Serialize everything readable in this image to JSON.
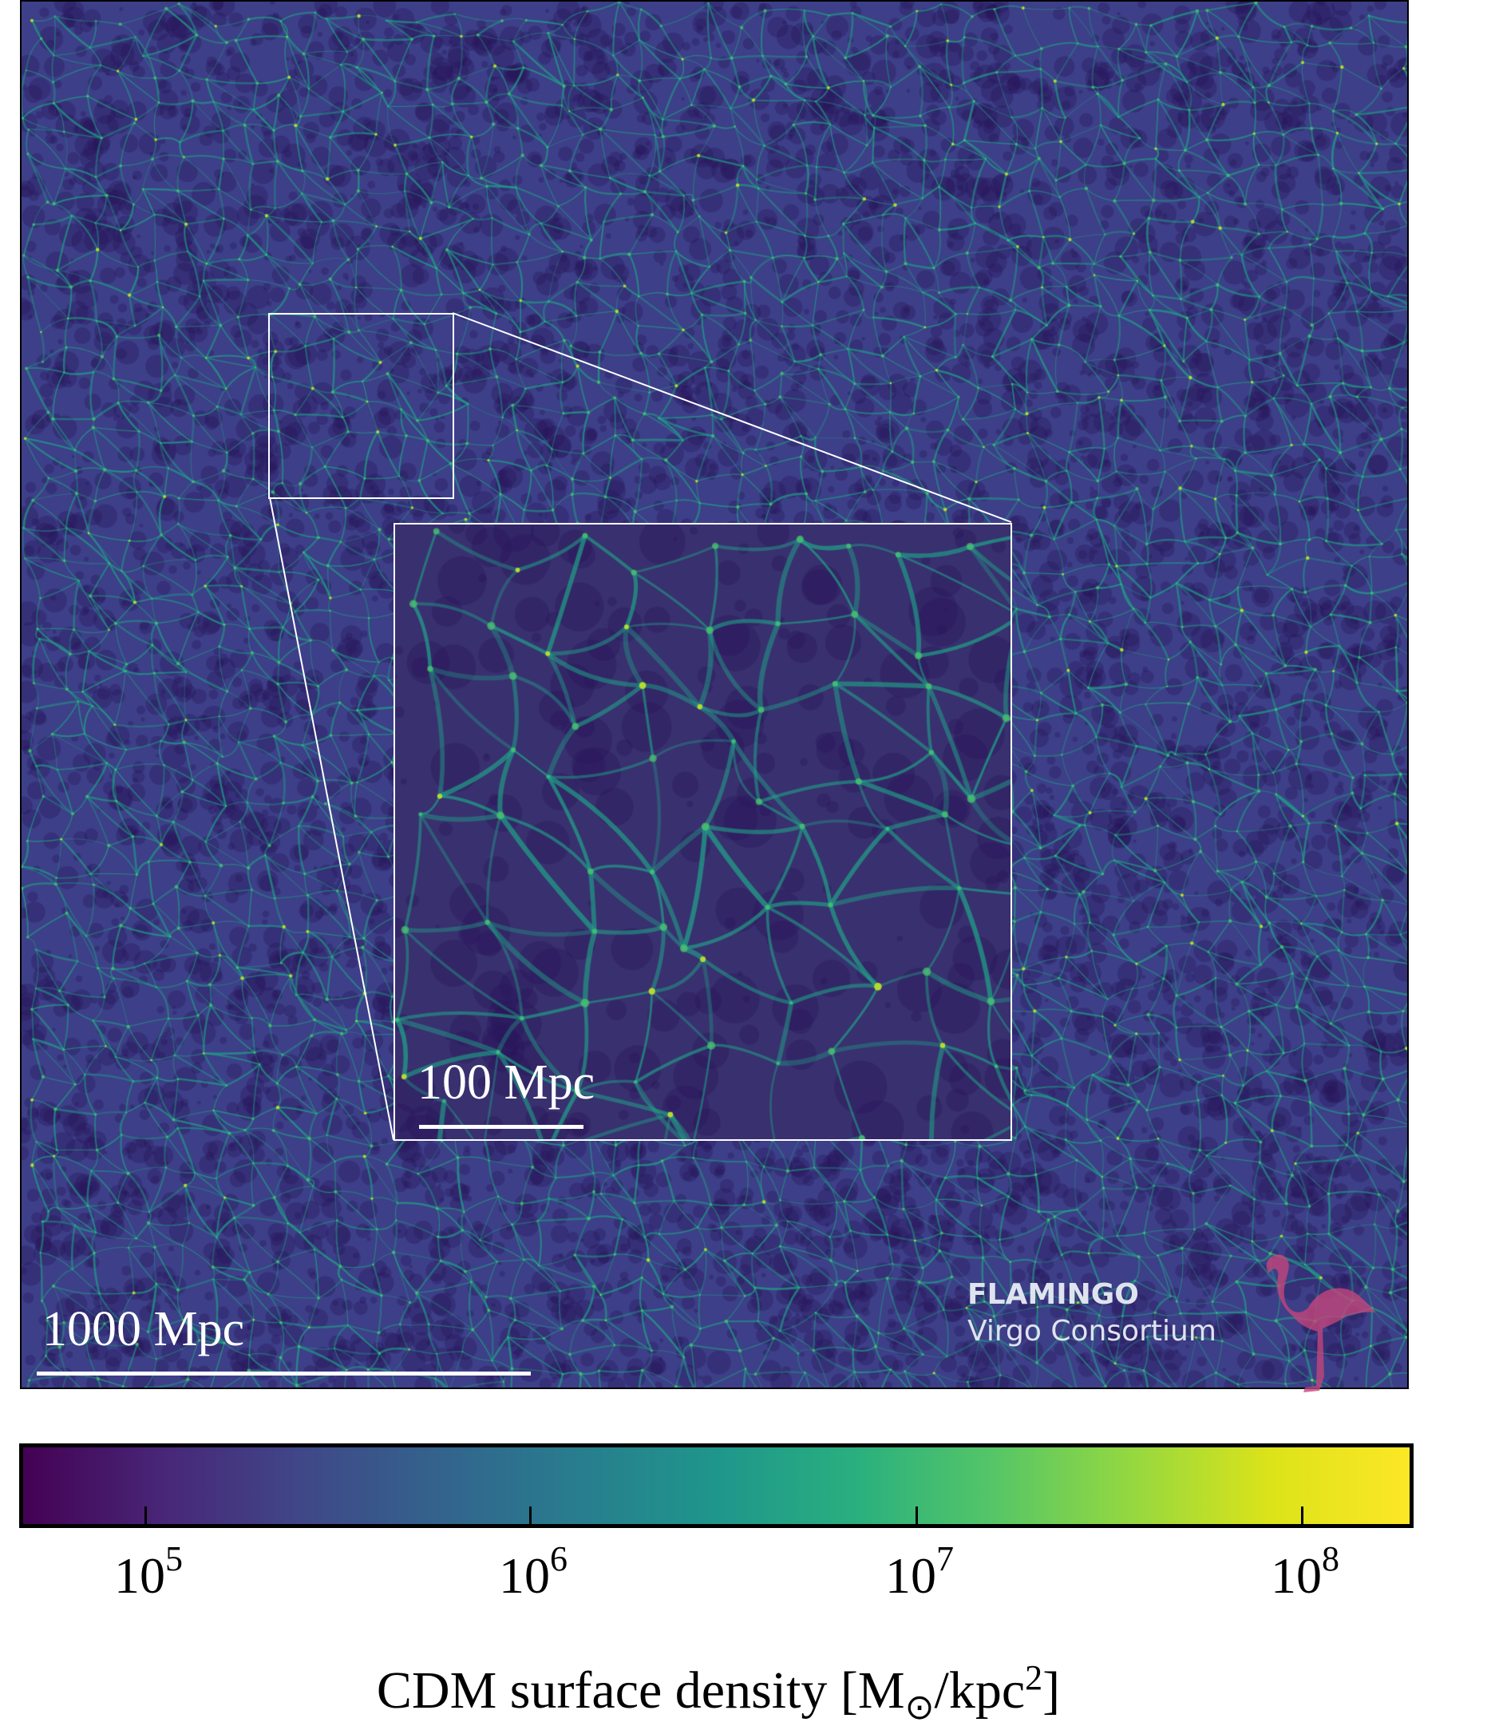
{
  "chart_data": {
    "type": "heatmap",
    "title": "",
    "colorbar": {
      "label": "CDM surface density [M⊙/kpc²]",
      "label_main": "CDM surface density [M",
      "label_sub": "⊙",
      "label_mid": "/kpc",
      "label_sup": "2",
      "label_end": "]",
      "scale": "log",
      "colormap": "viridis",
      "range": [
        46000,
        195000000
      ],
      "ticks": [
        {
          "value": 100000,
          "base": "10",
          "exp": "5"
        },
        {
          "value": 1000000,
          "base": "10",
          "exp": "6"
        },
        {
          "value": 10000000,
          "base": "10",
          "exp": "7"
        },
        {
          "value": 100000000,
          "base": "10",
          "exp": "8"
        }
      ]
    },
    "scale_bars": {
      "main": "1000 Mpc",
      "inset": "100 Mpc"
    }
  },
  "watermark": {
    "title": "FLAMINGO",
    "subtitle": "Virgo Consortium",
    "bird_color": "#c2457a"
  }
}
